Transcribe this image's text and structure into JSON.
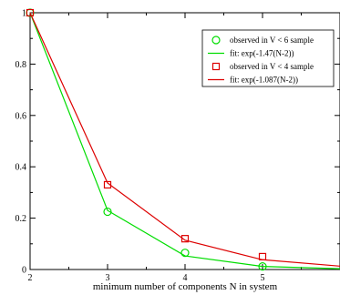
{
  "chart_data": {
    "type": "line",
    "title": "",
    "xlabel": "minimum number of components N in system",
    "ylabel": "",
    "xlim": [
      2,
      6
    ],
    "ylim": [
      0,
      1
    ],
    "xticks": [
      2,
      3,
      4,
      5
    ],
    "yticks": [
      0,
      0.2,
      0.4,
      0.6,
      0.8,
      1
    ],
    "xtick_labels": [
      "2",
      "3",
      "4",
      "5"
    ],
    "ytick_labels": [
      "0",
      "0.2",
      "0.4",
      "0.6",
      "0.8",
      "1"
    ],
    "grid": false,
    "legend_position": "top-right",
    "series": [
      {
        "name": "observed in V < 6 sample",
        "kind": "scatter",
        "marker": "circle",
        "color": "#00dd00",
        "x": [
          2,
          3,
          4,
          5
        ],
        "y": [
          1.0,
          0.225,
          0.065,
          0.012
        ]
      },
      {
        "name": "fit: exp(-1.47(N-2))",
        "kind": "line",
        "color": "#00dd00",
        "x": [
          2,
          3,
          4,
          5,
          6
        ],
        "y": [
          1.0,
          0.23,
          0.053,
          0.012,
          0.003
        ]
      },
      {
        "name": "observed in V < 4 sample",
        "kind": "scatter",
        "marker": "square",
        "color": "#dd0000",
        "x": [
          2,
          3,
          4,
          5
        ],
        "y": [
          1.0,
          0.33,
          0.12,
          0.05
        ]
      },
      {
        "name": "fit: exp(-1.087(N-2))",
        "kind": "line",
        "color": "#dd0000",
        "x": [
          2,
          3,
          4,
          5,
          6
        ],
        "y": [
          1.0,
          0.337,
          0.114,
          0.038,
          0.013
        ]
      }
    ]
  }
}
